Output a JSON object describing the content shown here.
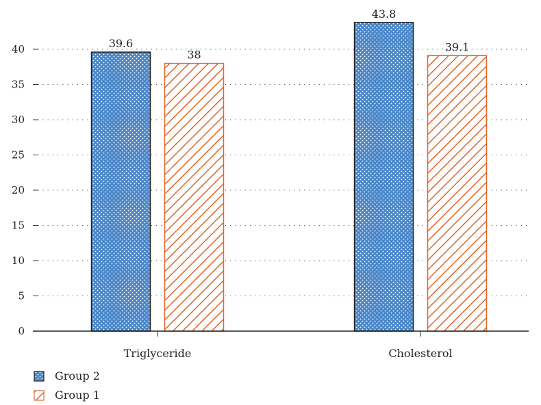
{
  "chart_data": {
    "type": "bar",
    "categories": [
      "Triglyceride",
      "Cholesterol"
    ],
    "series": [
      {
        "name": "Group 2",
        "values": [
          39.6,
          43.8
        ],
        "color": "#4a86c8",
        "pattern": "dots",
        "data_labels": [
          "39.6",
          "43.8"
        ]
      },
      {
        "name": "Group 1",
        "values": [
          38,
          39.1
        ],
        "color": "#e0662a",
        "pattern": "hatch",
        "data_labels": [
          "38",
          "39.1"
        ]
      }
    ],
    "yticks": [
      0,
      5,
      10,
      15,
      20,
      25,
      30,
      35,
      40
    ],
    "ylim": [
      0,
      45
    ],
    "grid": "dotted-horizontal",
    "legend_position": "bottom-left",
    "legend_order": [
      "Group 2",
      "Group 1"
    ]
  }
}
